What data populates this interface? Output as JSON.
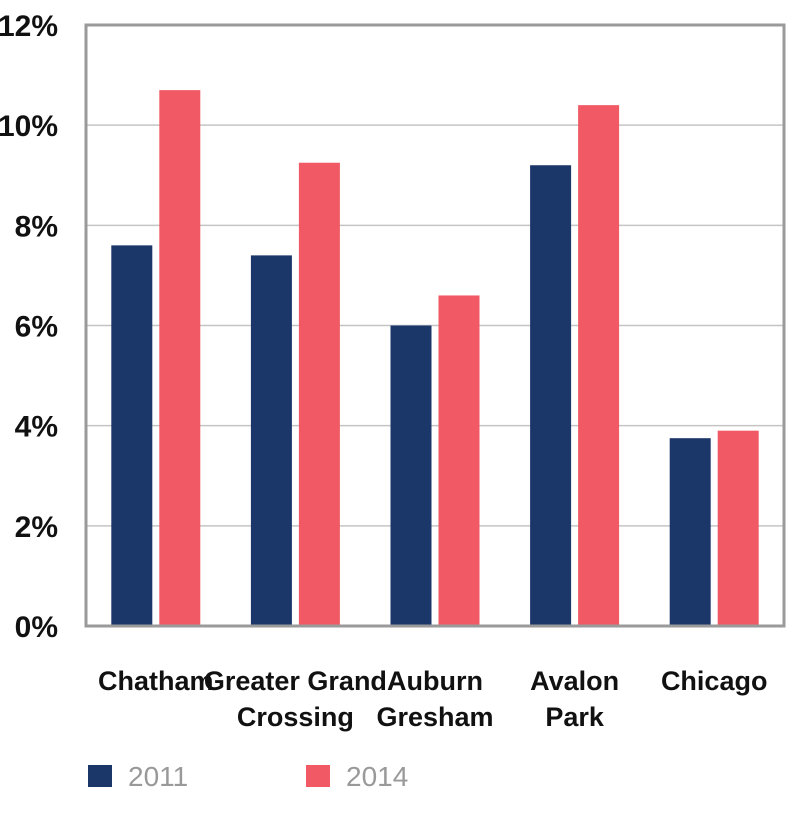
{
  "chart_data": {
    "type": "bar",
    "categories": [
      [
        "Chatham"
      ],
      [
        "Greater Grand",
        "Crossing"
      ],
      [
        "Auburn",
        "Gresham"
      ],
      [
        "Avalon",
        "Park"
      ],
      [
        "Chicago"
      ]
    ],
    "series": [
      {
        "name": "2011",
        "color": "#1b3668",
        "values": [
          7.6,
          7.4,
          6.0,
          9.2,
          3.75
        ]
      },
      {
        "name": "2014",
        "color": "#f15a65",
        "values": [
          10.7,
          9.25,
          6.6,
          10.4,
          3.9
        ]
      }
    ],
    "y_ticks": [
      "0%",
      "2%",
      "4%",
      "6%",
      "8%",
      "10%",
      "12%"
    ],
    "ylim": [
      0,
      12
    ],
    "grid": true,
    "legend_position": "bottom-left",
    "title": "",
    "xlabel": "",
    "ylabel": ""
  }
}
